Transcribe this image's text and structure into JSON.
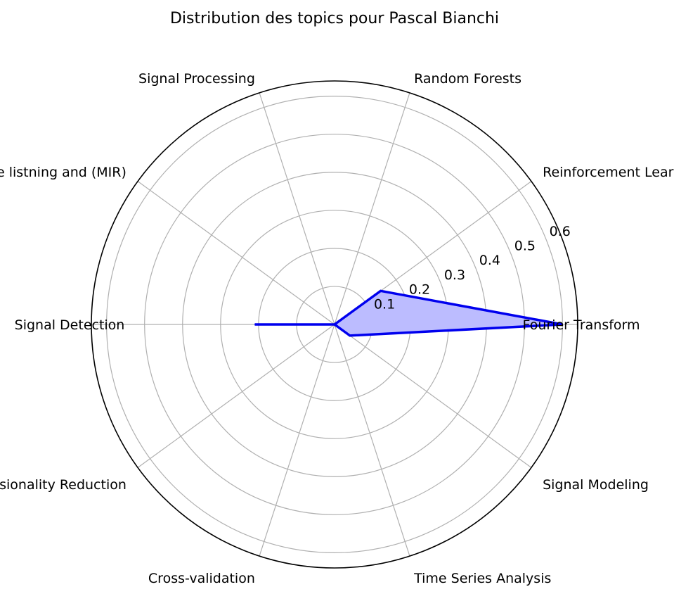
{
  "chart_data": {
    "type": "radar",
    "title": "Distribution des topics pour Pascal Bianchi",
    "categories": [
      "Fourier Transform",
      "Reinforcement Learning",
      "Random Forests",
      "Signal Processing",
      "Machine listning and (MIR)",
      "Signal Detection",
      "Dimensionality Reduction",
      "Cross-validation",
      "Time Series Analysis",
      "Signal Modeling"
    ],
    "values": [
      0.6,
      0.15,
      0.0,
      0.0,
      0.0,
      0.21,
      0.0,
      0.0,
      0.0,
      0.05
    ],
    "radial_ticks": [
      "0.1",
      "0.2",
      "0.3",
      "0.4",
      "0.5",
      "0.6"
    ],
    "rlim": [
      0,
      0.64
    ],
    "grid": true,
    "colors": {
      "line": "#0000ee",
      "fill": "#bcbcff",
      "grid": "#b0b0b0",
      "frame": "#000000"
    }
  }
}
